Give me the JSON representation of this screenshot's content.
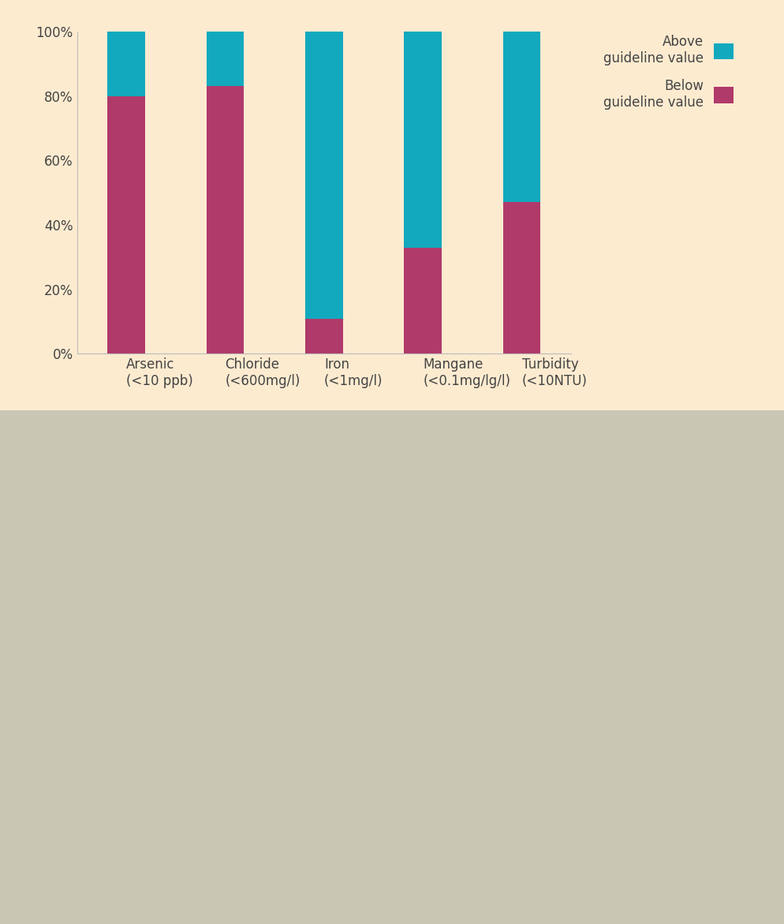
{
  "chart_data": {
    "type": "bar",
    "stacked": true,
    "categories": [
      "Arsenic\n(<10 ppb)",
      "Chloride\n(<600mg/l)",
      "Iron\n(<1mg/l)",
      "Mangane\n(<0.1mg/lg/l)",
      "Turbidity\n(<10NTU)"
    ],
    "series": [
      {
        "name": "Below\nguideline value",
        "color": "#b03a6a",
        "values": [
          80,
          83,
          11,
          33,
          47
        ]
      },
      {
        "name": "Above\nguideline value",
        "color": "#12a9be",
        "values": [
          20,
          17,
          89,
          67,
          53
        ]
      }
    ],
    "ylim": [
      0,
      100
    ],
    "yticks": [
      {
        "value": 0,
        "label": "0%"
      },
      {
        "value": 20,
        "label": "20%"
      },
      {
        "value": 40,
        "label": "40%"
      },
      {
        "value": 60,
        "label": "60%"
      },
      {
        "value": 80,
        "label": "80%"
      },
      {
        "value": 100,
        "label": "100%"
      }
    ],
    "grid": false,
    "legend": "upper right"
  }
}
